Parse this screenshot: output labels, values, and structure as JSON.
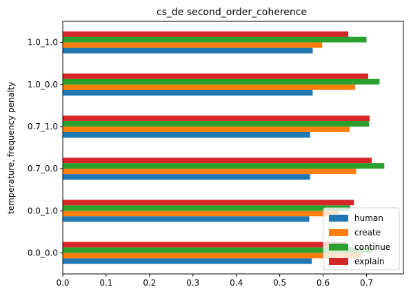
{
  "chart_data": {
    "type": "bar",
    "orientation": "horizontal",
    "title": "cs_de second_order_coherence",
    "xlabel": "",
    "ylabel": "temperature, frequency penalty",
    "categories": [
      "0.0_0.0",
      "0.0_1.0",
      "0.7_0.0",
      "0.7_1.0",
      "1.0_0.0",
      "1.0_1.0"
    ],
    "xlim": [
      0,
      0.785
    ],
    "xticks": [
      "0.0",
      "0.1",
      "0.2",
      "0.3",
      "0.4",
      "0.5",
      "0.6",
      "0.7"
    ],
    "grid": false,
    "legend_position": "lower right",
    "series": [
      {
        "name": "human",
        "color": "#1f77b4",
        "values": [
          0.574,
          0.568,
          0.57,
          0.57,
          0.576,
          0.576
        ]
      },
      {
        "name": "create",
        "color": "#ff7f0e",
        "values": [
          0.687,
          0.636,
          0.676,
          0.661,
          0.674,
          0.598
        ]
      },
      {
        "name": "continue",
        "color": "#2ca02c",
        "values": [
          0.714,
          0.662,
          0.741,
          0.706,
          0.73,
          0.7
        ]
      },
      {
        "name": "explain",
        "color": "#d62728",
        "values": [
          0.654,
          0.671,
          0.712,
          0.707,
          0.704,
          0.658
        ]
      }
    ]
  }
}
